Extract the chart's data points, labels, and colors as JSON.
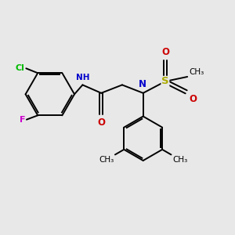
{
  "background_color": "#e8e8e8",
  "bond_color": "#000000",
  "cl_color": "#00bb00",
  "f_color": "#cc00cc",
  "n_color": "#0000cc",
  "o_color": "#cc0000",
  "s_color": "#aaaa00",
  "figsize": [
    3.0,
    3.0
  ],
  "dpi": 100,
  "xlim": [
    0,
    10
  ],
  "ylim": [
    0,
    10
  ]
}
